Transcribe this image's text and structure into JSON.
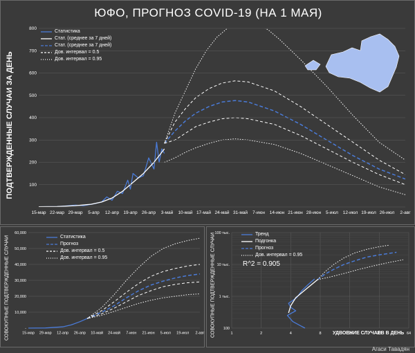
{
  "title": "ЮФО, ПРОГНОЗ COVID-19 (НА 1 МАЯ)",
  "author": "Агаси Тавадян",
  "colors": {
    "background": "#3c3c3c",
    "blue": "#4a7bd8",
    "white": "#ffffff",
    "grid": "#5e5e5e"
  },
  "chart_data": [
    {
      "id": "daily",
      "type": "line",
      "ylabel": "ПОДТВЕРЖДЕННЫЕ СЛУЧАИ ЗА ДЕНЬ",
      "ylim": [
        0,
        800
      ],
      "yticks": [
        "",
        "100",
        "200",
        "300",
        "400",
        "500",
        "600",
        "700",
        "800"
      ],
      "xticks": [
        "15-мар",
        "22-мар",
        "29-мар",
        "5-апр",
        "12-апр",
        "19-апр",
        "26-апр",
        "3-май",
        "10-май",
        "17-май",
        "24-май",
        "31-май",
        "7-июн",
        "14-июн",
        "21-июн",
        "28-июн",
        "5-июл",
        "12-июл",
        "19-июл",
        "26-июл",
        "2-авг"
      ],
      "legend": [
        {
          "label": "Статистика",
          "style": "blue-solid"
        },
        {
          "label": "Стат. (среднее за 7 дней)",
          "style": "white-solid"
        },
        {
          "label": "Стат. (среднее за 7 дней)",
          "style": "blue-dash"
        },
        {
          "label": "Дов. интервал = 0.5",
          "style": "white-dash"
        },
        {
          "label": "Дов. интервал = 0.95",
          "style": "white-dot"
        }
      ],
      "series": [
        {
          "name": "Статистика",
          "x": [
            0,
            7,
            10,
            14,
            17,
            19,
            21,
            24,
            26,
            28,
            30,
            32,
            34,
            35,
            36,
            38,
            40,
            41,
            42,
            44,
            45,
            46,
            47,
            48
          ],
          "y": [
            1,
            2,
            4,
            8,
            6,
            10,
            14,
            22,
            45,
            30,
            70,
            60,
            120,
            80,
            150,
            130,
            140,
            180,
            220,
            170,
            290,
            200,
            260,
            240
          ]
        },
        {
          "name": "Стат. (среднее за 7 дней)",
          "x": [
            0,
            7,
            14,
            20,
            24,
            28,
            32,
            36,
            40,
            44,
            48
          ],
          "y": [
            1,
            2,
            6,
            12,
            22,
            40,
            70,
            110,
            150,
            200,
            260
          ]
        },
        {
          "name": "Прогноз",
          "x": [
            48,
            52,
            56,
            60,
            65,
            70,
            75,
            80,
            90,
            100,
            110,
            120,
            130,
            140
          ],
          "y": [
            285,
            340,
            385,
            420,
            450,
            470,
            477,
            470,
            430,
            370,
            300,
            230,
            170,
            125
          ]
        },
        {
          "name": "Дов. интервал = 0.5 (верх)",
          "x": [
            48,
            52,
            56,
            60,
            65,
            70,
            75,
            80,
            90,
            100,
            110,
            120,
            130,
            140
          ],
          "y": [
            285,
            380,
            440,
            490,
            530,
            555,
            565,
            560,
            520,
            450,
            370,
            290,
            210,
            145
          ]
        },
        {
          "name": "Дов. интервал = 0.5 (низ)",
          "x": [
            48,
            52,
            56,
            60,
            65,
            70,
            75,
            80,
            90,
            100,
            110,
            120,
            130,
            140
          ],
          "y": [
            285,
            300,
            330,
            360,
            380,
            395,
            400,
            395,
            370,
            320,
            260,
            200,
            145,
            100
          ]
        },
        {
          "name": "Дов. интервал = 0.95 (верх)",
          "x": [
            48,
            52,
            56,
            60,
            64,
            68,
            72,
            76,
            80,
            84,
            88,
            92,
            100,
            110,
            120,
            130,
            140
          ],
          "y": [
            285,
            420,
            520,
            620,
            700,
            760,
            800,
            830,
            840,
            820,
            790,
            750,
            660,
            540,
            410,
            290,
            210
          ]
        },
        {
          "name": "Дов. интервал = 0.95 (низ)",
          "x": [
            48,
            52,
            56,
            60,
            65,
            70,
            75,
            80,
            90,
            100,
            110,
            120,
            130,
            140
          ],
          "y": [
            200,
            220,
            245,
            265,
            285,
            300,
            305,
            300,
            280,
            240,
            190,
            140,
            90,
            55
          ]
        }
      ]
    },
    {
      "id": "cumulative",
      "type": "line",
      "ylabel": "СОВОКУПНЫЕ ПОДТВЕРЖДЕННЫЕ СЛУЧАИ",
      "ylim": [
        0,
        60000
      ],
      "yticks": [
        "-",
        "10,000",
        "20,000",
        "30,000",
        "40,000",
        "50,000",
        "60,000"
      ],
      "xticks": [
        "15-мар",
        "29-мар",
        "12-апр",
        "26-апр",
        "10-май",
        "24-май",
        "7-июн",
        "21-июн",
        "5-июл",
        "19-июл",
        "2-авг"
      ],
      "legend": [
        {
          "label": "Статистика",
          "style": "blue-solid"
        },
        {
          "label": "Прогноз",
          "style": "blue-dash"
        },
        {
          "label": "Дов. интервал = 0.5",
          "style": "white-dash"
        },
        {
          "label": "Дов. интервал = 0.95",
          "style": "white-dot"
        }
      ],
      "series": [
        {
          "name": "Статистика",
          "x": [
            0,
            14,
            28,
            35,
            42,
            48
          ],
          "y": [
            0,
            100,
            800,
            2000,
            4000,
            6000
          ]
        },
        {
          "name": "Прогноз",
          "x": [
            48,
            60,
            70,
            80,
            90,
            100,
            110,
            120,
            130,
            140
          ],
          "y": [
            6000,
            10000,
            14000,
            19000,
            23500,
            27000,
            29500,
            31500,
            33000,
            34000
          ]
        },
        {
          "name": "Дов. интервал = 0.5 (верх)",
          "x": [
            48,
            60,
            70,
            80,
            90,
            100,
            110,
            120,
            130,
            140
          ],
          "y": [
            6000,
            11000,
            16500,
            22500,
            28000,
            32500,
            35500,
            37500,
            39000,
            40000
          ]
        },
        {
          "name": "Дов. интервал = 0.5 (низ)",
          "x": [
            48,
            60,
            70,
            80,
            90,
            100,
            110,
            120,
            130,
            140
          ],
          "y": [
            6000,
            9000,
            12500,
            16500,
            20500,
            23500,
            26000,
            27500,
            28500,
            29000
          ]
        },
        {
          "name": "Дов. интервал = 0.95 (верх)",
          "x": [
            48,
            60,
            70,
            80,
            90,
            100,
            110,
            120,
            130,
            140
          ],
          "y": [
            6000,
            13000,
            21000,
            30000,
            38000,
            45000,
            50000,
            53000,
            55000,
            56500
          ]
        },
        {
          "name": "Дов. интервал = 0.95 (низ)",
          "x": [
            48,
            60,
            70,
            80,
            90,
            100,
            110,
            120,
            130,
            140
          ],
          "y": [
            6000,
            8000,
            10500,
            13000,
            15500,
            17500,
            19000,
            20000,
            21000,
            21500
          ]
        }
      ]
    },
    {
      "id": "doubling",
      "type": "line",
      "ylabel": "СОВОКУПНЫЕ ПОДТВЕРЖДЕННЫЕ СЛУЧАИ",
      "xlabel": "УДВОЕНИЕ СЛУЧАЕВ В ДЕНЬ",
      "xscale": "log2",
      "yscale": "log10",
      "xlim": [
        1,
        64
      ],
      "ylim": [
        100,
        100000
      ],
      "xticks": [
        "1",
        "2",
        "4",
        "8",
        "16",
        "32",
        "64"
      ],
      "yticks": [
        "100",
        "1 тыс.",
        "10 тыс.",
        "100 тыс."
      ],
      "r2": "R^2 = 0.905",
      "legend": [
        {
          "label": "Тренд",
          "style": "blue-solid"
        },
        {
          "label": "Подгонка",
          "style": "white-solid"
        },
        {
          "label": "Прогноз",
          "style": "blue-dash"
        },
        {
          "label": "Дов. интервал = 0.95",
          "style": "white-dot"
        }
      ],
      "series": [
        {
          "name": "Тренд",
          "x": [
            5.6,
            5,
            4.2,
            3.7,
            4.5,
            4,
            3.8,
            4.6,
            5.2,
            6,
            7
          ],
          "y": [
            100,
            120,
            160,
            250,
            350,
            450,
            600,
            900,
            1500,
            2300,
            3500
          ]
        },
        {
          "name": "Подгонка",
          "x": [
            3.8,
            4,
            4.5,
            5.5,
            6.5,
            7.5
          ],
          "y": [
            300,
            500,
            900,
            1500,
            2300,
            3300
          ]
        },
        {
          "name": "Прогноз",
          "x": [
            7.5,
            9,
            11,
            14,
            18,
            24,
            32,
            48
          ],
          "y": [
            3300,
            5000,
            7000,
            10000,
            13000,
            17000,
            20000,
            24000
          ]
        },
        {
          "name": "Дов. интервал = 0.95 (верх)",
          "x": [
            7.5,
            9,
            11,
            14,
            18,
            24,
            32,
            40
          ],
          "y": [
            3300,
            6000,
            10000,
            16000,
            23000,
            30000,
            36000,
            40000
          ]
        },
        {
          "name": "Дов. интервал = 0.95 (низ)",
          "x": [
            7.5,
            10,
            14,
            20,
            28,
            40,
            56
          ],
          "y": [
            3300,
            4000,
            5200,
            7000,
            9000,
            11500,
            14000
          ]
        }
      ]
    }
  ]
}
